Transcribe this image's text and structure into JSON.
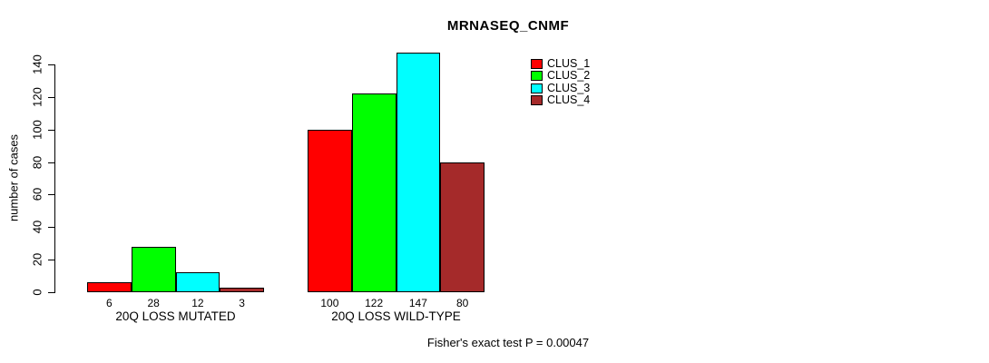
{
  "chart_data": {
    "type": "bar",
    "title": "MRNASEQ_CNMF",
    "ylabel": "number of cases",
    "xlabel": "",
    "ylim": [
      0,
      140
    ],
    "yticks": [
      0,
      20,
      40,
      60,
      80,
      100,
      120,
      140
    ],
    "grid": false,
    "legend_position": "top-right",
    "categories": [
      "20Q LOSS MUTATED",
      "20Q LOSS WILD-TYPE"
    ],
    "series": [
      {
        "name": "CLUS_1",
        "color": "#ff0000",
        "values": [
          6,
          100
        ]
      },
      {
        "name": "CLUS_2",
        "color": "#00ff00",
        "values": [
          28,
          122
        ]
      },
      {
        "name": "CLUS_3",
        "color": "#00ffff",
        "values": [
          12,
          147
        ]
      },
      {
        "name": "CLUS_4",
        "color": "#a52a2a",
        "values": [
          3,
          80
        ]
      }
    ],
    "bar_value_labels": [
      [
        "6",
        "28",
        "12",
        "3"
      ],
      [
        "100",
        "122",
        "147",
        "80"
      ]
    ],
    "footer": "Fisher's exact test P = 0.00047",
    "colors": {
      "background": "#ffffff",
      "axis": "#000000",
      "text": "#000000"
    }
  }
}
